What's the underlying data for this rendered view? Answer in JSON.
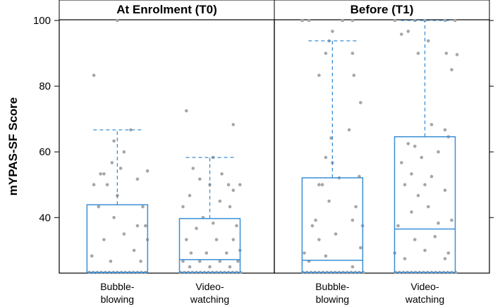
{
  "chart_data": {
    "type": "box",
    "ylabel": "mYPAS-SF Score",
    "ylim": [
      23.3,
      100
    ],
    "yticks": [
      40,
      60,
      80,
      100
    ],
    "grid": false,
    "categories": [
      [
        "Bubble-",
        "blowing"
      ],
      [
        "Video-",
        "watching"
      ]
    ],
    "colors": {
      "box": "#3b8fd6",
      "points": "#a6a6a6",
      "frame": "#000000"
    },
    "panels": [
      {
        "title": "At Enrolment (T0)",
        "groups": [
          {
            "category": "Bubble-blowing",
            "q1": 23.3,
            "median": 23.3,
            "q3": 43.9,
            "whisker_low": 23.3,
            "whisker_high": 66.7,
            "points": [
              [
                -0.42,
                23.3
              ],
              [
                -0.36,
                23.3
              ],
              [
                -0.3,
                23.3
              ],
              [
                -0.24,
                23.3
              ],
              [
                -0.18,
                23.3
              ],
              [
                -0.12,
                23.3
              ],
              [
                -0.06,
                23.3
              ],
              [
                0.0,
                23.3
              ],
              [
                0.06,
                23.3
              ],
              [
                0.12,
                23.3
              ],
              [
                0.18,
                23.3
              ],
              [
                0.24,
                23.3
              ],
              [
                0.3,
                23.3
              ],
              [
                0.36,
                23.3
              ],
              [
                0.42,
                23.3
              ],
              [
                -0.1,
                26.7
              ],
              [
                0.35,
                26.7
              ],
              [
                -0.38,
                28.3
              ],
              [
                0.25,
                30.0
              ],
              [
                0.45,
                33.3
              ],
              [
                -0.2,
                33.3
              ],
              [
                0.1,
                35.0
              ],
              [
                0.42,
                37.5
              ],
              [
                0.3,
                37.5
              ],
              [
                -0.05,
                40.0
              ],
              [
                0.38,
                43.3
              ],
              [
                -0.28,
                43.3
              ],
              [
                0.0,
                46.7
              ],
              [
                -0.35,
                50.0
              ],
              [
                -0.15,
                50.0
              ],
              [
                0.3,
                51.7
              ],
              [
                -0.2,
                53.3
              ],
              [
                0.05,
                55.0
              ],
              [
                -0.08,
                56.7
              ],
              [
                0.45,
                54.2
              ],
              [
                -0.25,
                53.3
              ],
              [
                0.1,
                60.0
              ],
              [
                -0.05,
                63.3
              ],
              [
                0.2,
                66.7
              ],
              [
                -0.35,
                83.3
              ],
              [
                0.0,
                100
              ]
            ]
          },
          {
            "category": "Video-watching",
            "q1": 23.3,
            "median": 27.2,
            "q3": 39.7,
            "whisker_low": 23.3,
            "whisker_high": 58.3,
            "points": [
              [
                -0.44,
                23.3
              ],
              [
                -0.38,
                23.3
              ],
              [
                -0.32,
                23.3
              ],
              [
                -0.26,
                23.3
              ],
              [
                -0.2,
                23.3
              ],
              [
                -0.14,
                23.3
              ],
              [
                -0.08,
                23.3
              ],
              [
                -0.02,
                23.3
              ],
              [
                0.04,
                23.3
              ],
              [
                0.1,
                23.3
              ],
              [
                0.16,
                23.3
              ],
              [
                0.22,
                23.3
              ],
              [
                0.28,
                23.3
              ],
              [
                0.34,
                23.3
              ],
              [
                0.4,
                23.3
              ],
              [
                0.46,
                23.3
              ],
              [
                -0.3,
                25.0
              ],
              [
                0.0,
                25.0
              ],
              [
                0.3,
                25.0
              ],
              [
                -0.4,
                26.7
              ],
              [
                -0.15,
                26.7
              ],
              [
                0.15,
                26.7
              ],
              [
                0.42,
                26.7
              ],
              [
                -0.28,
                29.2
              ],
              [
                -0.05,
                29.2
              ],
              [
                0.25,
                29.2
              ],
              [
                0.45,
                30.0
              ],
              [
                -0.35,
                33.3
              ],
              [
                0.1,
                33.3
              ],
              [
                0.35,
                33.3
              ],
              [
                -0.2,
                36.7
              ],
              [
                0.05,
                38.3
              ],
              [
                0.4,
                37.5
              ],
              [
                -0.4,
                43.3
              ],
              [
                -0.1,
                40.0
              ],
              [
                0.3,
                43.3
              ],
              [
                0.15,
                45.0
              ],
              [
                -0.3,
                46.7
              ],
              [
                0.35,
                48.3
              ],
              [
                0.45,
                50.0
              ],
              [
                0.28,
                50.0
              ],
              [
                0.0,
                50.0
              ],
              [
                -0.15,
                51.7
              ],
              [
                0.18,
                53.3
              ],
              [
                -0.25,
                55.0
              ],
              [
                0.05,
                58.3
              ],
              [
                0.35,
                68.3
              ],
              [
                -0.35,
                72.5
              ]
            ]
          }
        ]
      },
      {
        "title": "Before (T1)",
        "groups": [
          {
            "category": "Bubble-blowing",
            "q1": 23.3,
            "median": 27.0,
            "q3": 52.1,
            "whisker_low": 23.3,
            "whisker_high": 93.8,
            "points": [
              [
                -0.44,
                23.3
              ],
              [
                -0.38,
                23.3
              ],
              [
                -0.32,
                23.3
              ],
              [
                -0.26,
                23.3
              ],
              [
                -0.2,
                23.3
              ],
              [
                -0.14,
                23.3
              ],
              [
                -0.08,
                23.3
              ],
              [
                -0.02,
                23.3
              ],
              [
                0.04,
                23.3
              ],
              [
                0.1,
                23.3
              ],
              [
                0.16,
                23.3
              ],
              [
                0.22,
                23.3
              ],
              [
                0.28,
                23.3
              ],
              [
                0.34,
                23.3
              ],
              [
                0.4,
                23.3
              ],
              [
                0.46,
                23.3
              ],
              [
                0.3,
                25.0
              ],
              [
                -0.35,
                26.7
              ],
              [
                -0.1,
                28.3
              ],
              [
                -0.42,
                29.2
              ],
              [
                0.42,
                30.8
              ],
              [
                -0.2,
                33.3
              ],
              [
                0.05,
                35.0
              ],
              [
                -0.3,
                37.5
              ],
              [
                0.45,
                37.5
              ],
              [
                0.3,
                39.2
              ],
              [
                -0.25,
                39.2
              ],
              [
                0.35,
                43.3
              ],
              [
                -0.05,
                45.0
              ],
              [
                -0.2,
                50.0
              ],
              [
                -0.15,
                50.0
              ],
              [
                0.1,
                52.1
              ],
              [
                0.4,
                52.5
              ],
              [
                0.0,
                56.7
              ],
              [
                -0.1,
                58.3
              ],
              [
                -0.02,
                64.2
              ],
              [
                0.25,
                66.7
              ],
              [
                0.42,
                75.0
              ],
              [
                -0.2,
                83.3
              ],
              [
                0.32,
                83.3
              ],
              [
                -0.1,
                90.0
              ],
              [
                0.3,
                90.0
              ],
              [
                -0.05,
                93.8
              ],
              [
                0.0,
                96.7
              ],
              [
                -0.45,
                100
              ],
              [
                -0.35,
                100
              ],
              [
                0.15,
                100
              ],
              [
                0.3,
                100
              ]
            ]
          },
          {
            "category": "Video-watching",
            "q1": 23.3,
            "median": 36.5,
            "q3": 64.6,
            "whisker_low": 23.3,
            "whisker_high": 100,
            "points": [
              [
                -0.44,
                23.3
              ],
              [
                -0.38,
                23.3
              ],
              [
                -0.32,
                23.3
              ],
              [
                -0.26,
                23.3
              ],
              [
                -0.2,
                23.3
              ],
              [
                -0.14,
                23.3
              ],
              [
                -0.08,
                23.3
              ],
              [
                -0.02,
                23.3
              ],
              [
                0.04,
                23.3
              ],
              [
                0.1,
                23.3
              ],
              [
                0.16,
                23.3
              ],
              [
                0.22,
                23.3
              ],
              [
                0.28,
                23.3
              ],
              [
                0.34,
                23.3
              ],
              [
                0.4,
                23.3
              ],
              [
                0.46,
                23.3
              ],
              [
                -0.3,
                27.5
              ],
              [
                0.3,
                27.5
              ],
              [
                0.35,
                29.2
              ],
              [
                -0.45,
                29.2
              ],
              [
                0.0,
                30.0
              ],
              [
                -0.15,
                33.3
              ],
              [
                0.15,
                34.2
              ],
              [
                -0.4,
                37.5
              ],
              [
                0.2,
                38.3
              ],
              [
                0.4,
                39.2
              ],
              [
                -0.2,
                41.7
              ],
              [
                0.05,
                43.3
              ],
              [
                -0.1,
                46.7
              ],
              [
                0.3,
                48.3
              ],
              [
                -0.3,
                50.0
              ],
              [
                0.0,
                50.0
              ],
              [
                0.1,
                52.5
              ],
              [
                -0.2,
                53.3
              ],
              [
                -0.35,
                56.7
              ],
              [
                -0.05,
                58.3
              ],
              [
                0.2,
                60.0
              ],
              [
                -0.15,
                61.7
              ],
              [
                -0.25,
                62.5
              ],
              [
                0.35,
                64.6
              ],
              [
                0.3,
                66.7
              ],
              [
                0.1,
                68.3
              ],
              [
                0.4,
                85.0
              ],
              [
                -0.1,
                90.0
              ],
              [
                0.32,
                90.0
              ],
              [
                0.48,
                89.6
              ],
              [
                0.05,
                93.8
              ],
              [
                -0.35,
                95.8
              ],
              [
                -0.25,
                96.7
              ],
              [
                -0.45,
                100
              ],
              [
                -0.15,
                100
              ],
              [
                0.0,
                100
              ],
              [
                0.3,
                100
              ],
              [
                0.45,
                100
              ]
            ]
          }
        ]
      }
    ]
  }
}
